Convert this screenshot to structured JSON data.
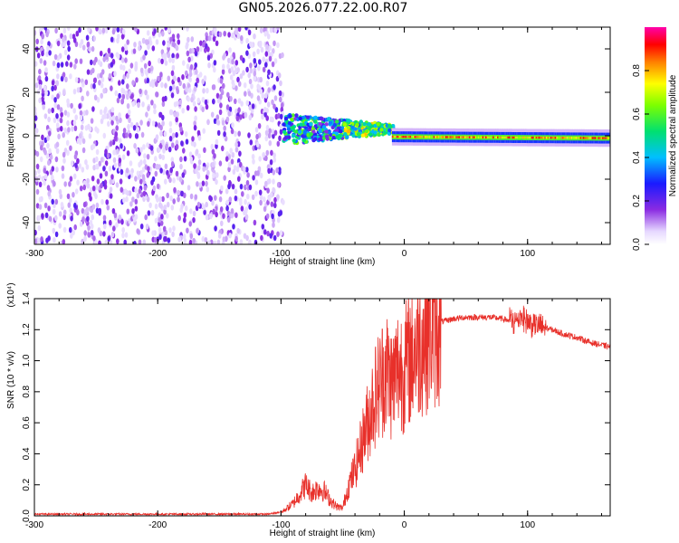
{
  "page": {
    "title": "GN05.2026.077.22.00.R07"
  },
  "colors": {
    "snr_line": "#e8302a",
    "axis": "#000000",
    "background": "#ffffff"
  },
  "chart_data": [
    {
      "type": "heatmap",
      "title": "GN05.2026.077.22.00.R07",
      "xlabel": "Height of straight line (km)",
      "ylabel": "Frequency (Hz)",
      "xlim": [
        -300,
        167
      ],
      "ylim": [
        -50,
        50
      ],
      "x_ticks": [
        "-300",
        "-200",
        "-100",
        "0",
        "100"
      ],
      "y_ticks": [
        "-40",
        "-20",
        "0",
        "20",
        "40"
      ],
      "x_tick_values": [
        -300,
        -200,
        -100,
        0,
        100
      ],
      "y_tick_values": [
        -40,
        -20,
        0,
        20,
        40
      ],
      "colorbar": {
        "label": "Normalized spectral amplitude",
        "range": [
          0,
          1
        ],
        "ticks": [
          "0.0",
          "0.2",
          "0.4",
          "0.6",
          "0.8"
        ],
        "tick_values": [
          0.0,
          0.2,
          0.4,
          0.6,
          0.8
        ],
        "colormap": "rainbow (white-violet-blue-cyan-green-yellow-red-magenta)"
      },
      "regions": [
        {
          "x_range": [
            -300,
            -98
          ],
          "frequency_range": [
            -50,
            50
          ],
          "amplitude": "low (0.05-0.2), noise"
        },
        {
          "x_range": [
            -98,
            -10
          ],
          "frequency_center": [
            0,
            5
          ],
          "amplitude": "0.2-0.8, scattered"
        },
        {
          "x_range": [
            -10,
            167
          ],
          "frequency_center": [
            -1,
            0
          ],
          "amplitude": "0.5-1.0, narrow band"
        }
      ]
    },
    {
      "type": "line",
      "xlabel": "Height of straight line (km)",
      "ylabel": "SNR (10 * v/v)",
      "y_multiplier": "(x10⁴)",
      "xlim": [
        -300,
        167
      ],
      "ylim": [
        0,
        1.4
      ],
      "x_ticks": [
        "-300",
        "-200",
        "-100",
        "0",
        "100"
      ],
      "y_ticks": [
        "0.0",
        "0.2",
        "0.4",
        "0.6",
        "0.8",
        "1.0",
        "1.2",
        "1.4"
      ],
      "x_tick_values": [
        -300,
        -200,
        -100,
        0,
        100
      ],
      "y_tick_values": [
        0.0,
        0.2,
        0.4,
        0.6,
        0.8,
        1.0,
        1.2,
        1.4
      ],
      "series": [
        {
          "x": [
            -300,
            -250,
            -200,
            -150,
            -110,
            -100,
            -90,
            -80,
            -75,
            -70,
            -65,
            -60,
            -55,
            -50,
            -45,
            -40,
            -35,
            -30,
            -25,
            -20,
            -15,
            -10,
            -5,
            0,
            10,
            20,
            30,
            40,
            50,
            60,
            70,
            80,
            90,
            95,
            100,
            110,
            120,
            130,
            140,
            150,
            160,
            167
          ],
          "y": [
            0.005,
            0.005,
            0.005,
            0.005,
            0.005,
            0.02,
            0.08,
            0.2,
            0.15,
            0.18,
            0.16,
            0.1,
            0.06,
            0.05,
            0.2,
            0.3,
            0.45,
            0.6,
            0.75,
            0.85,
            0.95,
            0.85,
            0.95,
            0.95,
            1.1,
            1.2,
            1.25,
            1.27,
            1.28,
            1.28,
            1.28,
            1.27,
            1.25,
            1.3,
            1.25,
            1.22,
            1.2,
            1.17,
            1.15,
            1.12,
            1.1,
            1.09
          ]
        }
      ]
    }
  ]
}
